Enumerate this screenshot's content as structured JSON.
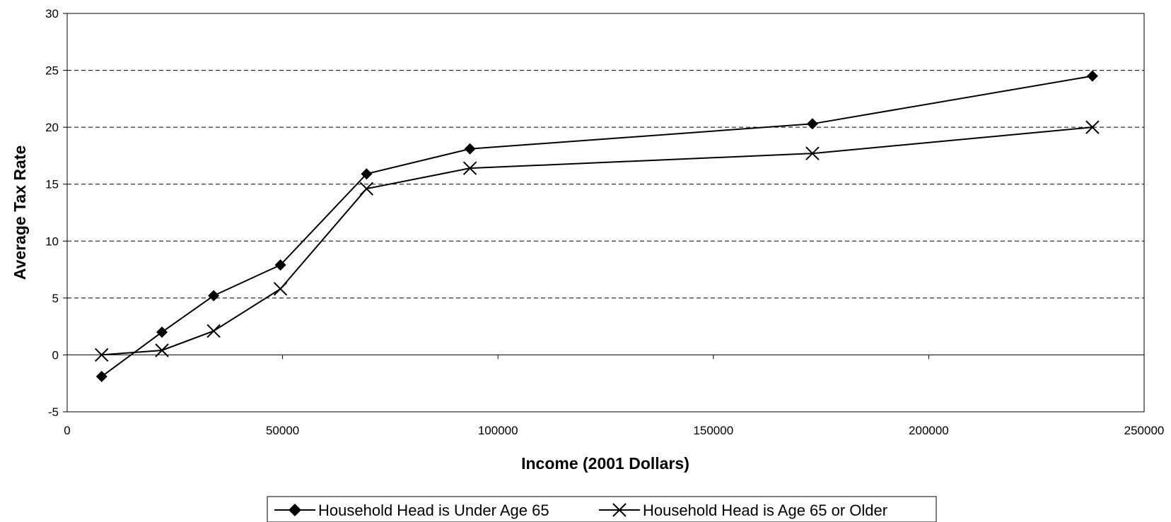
{
  "chart_data": {
    "type": "line",
    "title": "",
    "xlabel": "Income (2001 Dollars)",
    "ylabel": "Average Tax Rate",
    "xlim": [
      0,
      250000
    ],
    "ylim": [
      -5,
      30
    ],
    "x_ticks": [
      0,
      50000,
      100000,
      150000,
      200000,
      250000
    ],
    "y_ticks": [
      -5,
      0,
      5,
      10,
      15,
      20,
      25,
      30
    ],
    "grid": "horizontal dashed",
    "legend_position": "bottom-center",
    "series": [
      {
        "name": "Household Head is Under Age 65",
        "marker": "diamond",
        "color": "#000000",
        "x": [
          8000,
          22000,
          34000,
          49500,
          69500,
          93500,
          173000,
          238000
        ],
        "y": [
          -1.9,
          2.0,
          5.2,
          7.9,
          15.9,
          18.1,
          20.3,
          24.5
        ]
      },
      {
        "name": "Household Head is Age 65 or Older",
        "marker": "x",
        "color": "#000000",
        "x": [
          8000,
          22000,
          34000,
          49500,
          69500,
          93500,
          173000,
          238000
        ],
        "y": [
          0.0,
          0.4,
          2.1,
          5.8,
          14.6,
          16.4,
          17.7,
          20.0
        ]
      }
    ]
  }
}
